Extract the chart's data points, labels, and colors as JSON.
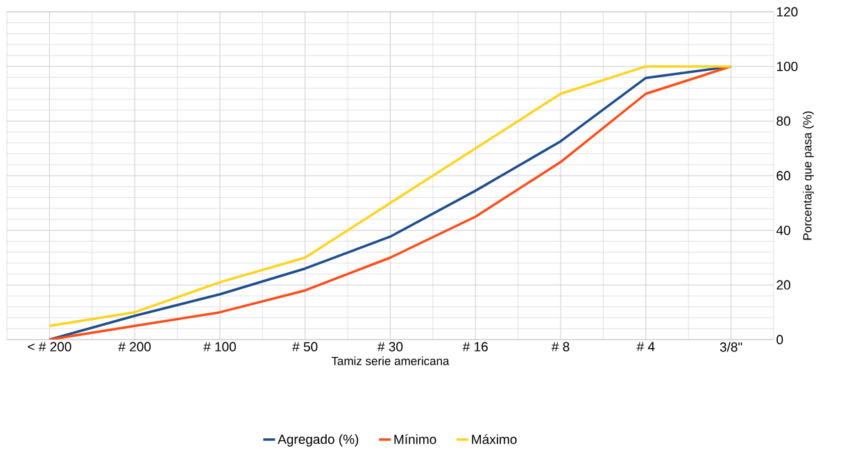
{
  "chart_data": {
    "type": "line",
    "xlabel": "Tamiz serie americana",
    "ylabel": "Porcentaje que pasa (%)",
    "categories": [
      "< # 200",
      "# 200",
      "# 100",
      "# 50",
      "# 30",
      "# 16",
      "# 8",
      "# 4",
      "3/8\""
    ],
    "series": [
      {
        "name": "Agregado (%)",
        "color": "#1f4e8c",
        "values": [
          0,
          8.7,
          16.6,
          26,
          37.7,
          54.5,
          72.6,
          95.8,
          100
        ]
      },
      {
        "name": "Mínimo",
        "color": "#fc4e1c",
        "values": [
          0,
          5,
          10,
          18,
          30,
          45,
          65,
          90,
          100
        ]
      },
      {
        "name": "Máximo",
        "color": "#ffd320",
        "values": [
          5,
          10,
          21,
          30,
          50,
          70,
          90,
          100,
          100
        ]
      }
    ],
    "ylim": [
      0,
      120
    ],
    "yticks": [
      0,
      20,
      40,
      60,
      80,
      100,
      120
    ],
    "grid": true,
    "legend": "bottom"
  }
}
